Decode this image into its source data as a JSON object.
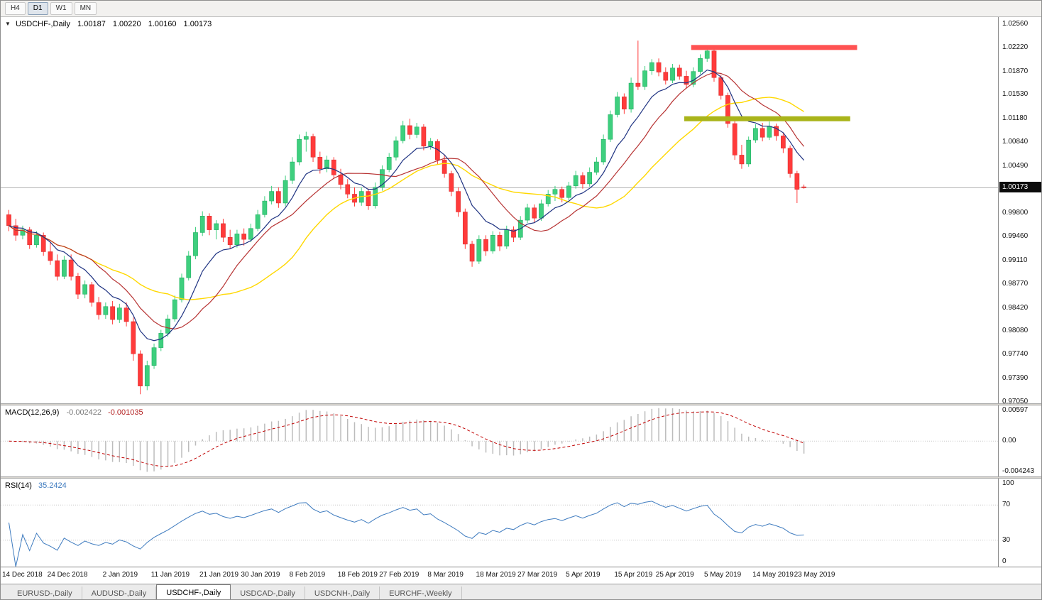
{
  "toolbar": {
    "timeframes": [
      {
        "label": "H4",
        "active": false
      },
      {
        "label": "D1",
        "active": true
      },
      {
        "label": "W1",
        "active": false
      },
      {
        "label": "MN",
        "active": false
      }
    ]
  },
  "chart": {
    "symbol_title": "USDCHF-,Daily",
    "ohlc": {
      "open": "1.00187",
      "high": "1.00220",
      "low": "1.00160",
      "close": "1.00173"
    },
    "price_axis_labels": [
      "1.02560",
      "1.02220",
      "1.01870",
      "1.01530",
      "1.01180",
      "1.00840",
      "1.00490",
      "0.99800",
      "0.99460",
      "0.99110",
      "0.98770",
      "0.98420",
      "0.98080",
      "0.97740",
      "0.97390",
      "0.97050"
    ]
  },
  "macd": {
    "name": "MACD(12,26,9)",
    "main_value": "-0.002422",
    "signal_value": "-0.001035",
    "axis": {
      "top": "0.00597",
      "zero": "0.00",
      "bottom": "-0.004243"
    }
  },
  "rsi": {
    "name": "RSI(14)",
    "value": "35.2424",
    "axis_labels": [
      "100",
      "70",
      "30",
      "0"
    ],
    "levels": [
      70,
      30
    ]
  },
  "date_axis": {
    "labels": [
      {
        "text": "14 Dec 2018",
        "index": 0
      },
      {
        "text": "24 Dec 2018",
        "index": 7
      },
      {
        "text": "2 Jan 2019",
        "index": 15
      },
      {
        "text": "11 Jan 2019",
        "index": 22
      },
      {
        "text": "21 Jan 2019",
        "index": 29
      },
      {
        "text": "30 Jan 2019",
        "index": 35
      },
      {
        "text": "8 Feb 2019",
        "index": 42
      },
      {
        "text": "18 Feb 2019",
        "index": 49
      },
      {
        "text": "27 Feb 2019",
        "index": 55
      },
      {
        "text": "8 Mar 2019",
        "index": 62
      },
      {
        "text": "18 Mar 2019",
        "index": 69
      },
      {
        "text": "27 Mar 2019",
        "index": 75
      },
      {
        "text": "5 Apr 2019",
        "index": 82
      },
      {
        "text": "15 Apr 2019",
        "index": 89
      },
      {
        "text": "25 Apr 2019",
        "index": 95
      },
      {
        "text": "5 May 2019",
        "index": 102
      },
      {
        "text": "14 May 2019",
        "index": 109
      },
      {
        "text": "23 May 2019",
        "index": 115
      }
    ]
  },
  "tabs": [
    {
      "label": "EURUSD-,Daily",
      "active": false
    },
    {
      "label": "AUDUSD-,Daily",
      "active": false
    },
    {
      "label": "USDCHF-,Daily",
      "active": true
    },
    {
      "label": "USDCAD-,Daily",
      "active": false
    },
    {
      "label": "USDCNH-,Daily",
      "active": false
    },
    {
      "label": "EURCHF-,Weekly",
      "active": false
    }
  ],
  "colors": {
    "candle_bull": "#3ecf7e",
    "candle_bull_edge": "#17a85b",
    "candle_bear": "#ff3b3b",
    "candle_bear_edge": "#d42a2a",
    "macd_hist": "#bcbcbc",
    "macd_signal": "#c00000",
    "rsi_line": "#3e7bbf",
    "price_line": "#b0b0b0"
  },
  "chart_data": {
    "type": "candlestick",
    "symbol": "USDCHF",
    "timeframe": "Daily",
    "title": "USDCHF-,Daily 1.00187 1.00220 1.00160 1.00173",
    "price_range": {
      "top": 1.02664,
      "bottom": 0.97028
    },
    "current_price": 1.00173,
    "candles_ohlc": [
      [
        0.9978,
        0.9985,
        0.9954,
        0.9962
      ],
      [
        0.9962,
        0.9972,
        0.994,
        0.9948
      ],
      [
        0.9948,
        0.9962,
        0.9942,
        0.9956
      ],
      [
        0.9956,
        0.996,
        0.9928,
        0.9934
      ],
      [
        0.9934,
        0.9954,
        0.993,
        0.9948
      ],
      [
        0.9948,
        0.9952,
        0.9918,
        0.9924
      ],
      [
        0.9924,
        0.9938,
        0.9905,
        0.9911
      ],
      [
        0.9911,
        0.992,
        0.9882,
        0.9888
      ],
      [
        0.9888,
        0.9918,
        0.9884,
        0.9912
      ],
      [
        0.9912,
        0.992,
        0.9882,
        0.9888
      ],
      [
        0.9888,
        0.9893,
        0.9855,
        0.9862
      ],
      [
        0.9862,
        0.9882,
        0.9856,
        0.9876
      ],
      [
        0.9876,
        0.988,
        0.9844,
        0.985
      ],
      [
        0.985,
        0.9858,
        0.9825,
        0.9832
      ],
      [
        0.9832,
        0.985,
        0.9826,
        0.9844
      ],
      [
        0.9844,
        0.9852,
        0.9818,
        0.9825
      ],
      [
        0.9825,
        0.9848,
        0.982,
        0.9842
      ],
      [
        0.9842,
        0.985,
        0.9815,
        0.9822
      ],
      [
        0.9822,
        0.9828,
        0.9765,
        0.9775
      ],
      [
        0.9775,
        0.978,
        0.9716,
        0.9728
      ],
      [
        0.9728,
        0.9765,
        0.9722,
        0.9758
      ],
      [
        0.9758,
        0.979,
        0.9753,
        0.9784
      ],
      [
        0.9784,
        0.981,
        0.9779,
        0.9805
      ],
      [
        0.9805,
        0.9832,
        0.98,
        0.9826
      ],
      [
        0.9826,
        0.986,
        0.9822,
        0.9854
      ],
      [
        0.9854,
        0.9892,
        0.985,
        0.9886
      ],
      [
        0.9886,
        0.9925,
        0.9882,
        0.9918
      ],
      [
        0.9918,
        0.996,
        0.9913,
        0.9952
      ],
      [
        0.9952,
        0.9983,
        0.9947,
        0.9976
      ],
      [
        0.9976,
        0.998,
        0.9948,
        0.9956
      ],
      [
        0.9956,
        0.997,
        0.9942,
        0.9965
      ],
      [
        0.9965,
        0.9972,
        0.9938,
        0.9945
      ],
      [
        0.9945,
        0.9956,
        0.9928,
        0.9934
      ],
      [
        0.9934,
        0.9956,
        0.993,
        0.995
      ],
      [
        0.995,
        0.9958,
        0.9933,
        0.9942
      ],
      [
        0.9942,
        0.9965,
        0.9938,
        0.9958
      ],
      [
        0.9958,
        0.9985,
        0.9954,
        0.9978
      ],
      [
        0.9978,
        1.0005,
        0.9974,
        0.9998
      ],
      [
        0.9998,
        1.002,
        0.9993,
        1.0012
      ],
      [
        1.0012,
        1.0018,
        0.9988,
        0.9995
      ],
      [
        0.9995,
        1.0035,
        0.999,
        1.0028
      ],
      [
        1.0028,
        1.0062,
        1.0023,
        1.0055
      ],
      [
        1.0055,
        1.0095,
        1.005,
        1.0088
      ],
      [
        1.0088,
        1.0099,
        1.007,
        1.0092
      ],
      [
        1.0092,
        1.0096,
        1.0055,
        1.0062
      ],
      [
        1.0062,
        1.007,
        1.0038,
        1.0045
      ],
      [
        1.0045,
        1.0064,
        1.004,
        1.0058
      ],
      [
        1.0058,
        1.0062,
        1.003,
        1.0036
      ],
      [
        1.0036,
        1.0045,
        1.0015,
        1.0022
      ],
      [
        1.0022,
        1.003,
        1.0002,
        1.0008
      ],
      [
        1.0008,
        1.0018,
        0.999,
        0.9996
      ],
      [
        0.9996,
        1.0018,
        0.9991,
        1.0012
      ],
      [
        1.0012,
        1.0016,
        0.9985,
        0.9991
      ],
      [
        0.9991,
        1.0025,
        0.9987,
        1.0018
      ],
      [
        1.0018,
        1.005,
        1.0013,
        1.0044
      ],
      [
        1.0044,
        1.0068,
        1.004,
        1.0062
      ],
      [
        1.0062,
        1.0092,
        1.0057,
        1.0086
      ],
      [
        1.0086,
        1.0115,
        1.0082,
        1.0108
      ],
      [
        1.0108,
        1.0118,
        1.0088,
        1.0095
      ],
      [
        1.0095,
        1.0112,
        1.009,
        1.0106
      ],
      [
        1.0106,
        1.011,
        1.0072,
        1.0078
      ],
      [
        1.0078,
        1.009,
        1.0073,
        1.0085
      ],
      [
        1.0085,
        1.0088,
        1.0052,
        1.0058
      ],
      [
        1.0058,
        1.0065,
        1.0032,
        1.0038
      ],
      [
        1.0038,
        1.0042,
        1.0005,
        1.0012
      ],
      [
        1.0012,
        1.0018,
        0.9975,
        0.9982
      ],
      [
        0.9982,
        0.9987,
        0.9928,
        0.9935
      ],
      [
        0.9935,
        0.994,
        0.9902,
        0.991
      ],
      [
        0.991,
        0.9948,
        0.9906,
        0.9942
      ],
      [
        0.9942,
        0.9948,
        0.9918,
        0.9925
      ],
      [
        0.9925,
        0.9954,
        0.9921,
        0.9948
      ],
      [
        0.9948,
        0.9953,
        0.9925,
        0.9932
      ],
      [
        0.9932,
        0.9962,
        0.9928,
        0.9956
      ],
      [
        0.9956,
        0.9961,
        0.9938,
        0.9945
      ],
      [
        0.9945,
        0.9976,
        0.9941,
        0.997
      ],
      [
        0.997,
        0.9994,
        0.9966,
        0.9988
      ],
      [
        0.9988,
        0.9993,
        0.9966,
        0.9973
      ],
      [
        0.9973,
        1.0,
        0.9969,
        0.9994
      ],
      [
        0.9994,
        1.0014,
        0.999,
        1.0008
      ],
      [
        1.0008,
        1.002,
        0.9998,
        1.0015
      ],
      [
        1.0015,
        1.0019,
        0.9996,
        1.0003
      ],
      [
        1.0003,
        1.0026,
        0.9999,
        1.002
      ],
      [
        1.002,
        1.0042,
        1.0016,
        1.0035
      ],
      [
        1.0035,
        1.004,
        1.0016,
        1.0023
      ],
      [
        1.0023,
        1.0047,
        1.0019,
        1.004
      ],
      [
        1.004,
        1.0062,
        1.0036,
        1.0055
      ],
      [
        1.0055,
        1.0095,
        1.0051,
        1.0088
      ],
      [
        1.0088,
        1.013,
        1.0084,
        1.0124
      ],
      [
        1.0124,
        1.0157,
        1.012,
        1.015
      ],
      [
        1.015,
        1.0155,
        1.0125,
        1.0132
      ],
      [
        1.0132,
        1.0178,
        1.0127,
        1.017
      ],
      [
        1.017,
        1.0232,
        1.016,
        1.0165
      ],
      [
        1.0165,
        1.0195,
        1.016,
        1.0188
      ],
      [
        1.0188,
        1.0205,
        1.0182,
        1.02
      ],
      [
        1.02,
        1.0206,
        1.018,
        1.0186
      ],
      [
        1.0186,
        1.0193,
        1.0168,
        1.0174
      ],
      [
        1.0174,
        1.0198,
        1.017,
        1.0192
      ],
      [
        1.0192,
        1.0197,
        1.0175,
        1.018
      ],
      [
        1.018,
        1.0188,
        1.0162,
        1.0168
      ],
      [
        1.0168,
        1.0193,
        1.0164,
        1.0187
      ],
      [
        1.0187,
        1.0212,
        1.0183,
        1.0206
      ],
      [
        1.0206,
        1.0223,
        1.0201,
        1.0217
      ],
      [
        1.0217,
        1.022,
        1.0172,
        1.0178
      ],
      [
        1.0178,
        1.0182,
        1.0146,
        1.0152
      ],
      [
        1.0152,
        1.0156,
        1.0105,
        1.0111
      ],
      [
        1.0111,
        1.0116,
        1.0058,
        1.0065
      ],
      [
        1.0065,
        1.008,
        1.0045,
        1.0052
      ],
      [
        1.0052,
        1.0092,
        1.0048,
        1.0087
      ],
      [
        1.0087,
        1.011,
        1.0083,
        1.0104
      ],
      [
        1.0104,
        1.0112,
        1.0085,
        1.0091
      ],
      [
        1.0091,
        1.0114,
        1.0087,
        1.0107
      ],
      [
        1.0107,
        1.0111,
        1.0086,
        1.0093
      ],
      [
        1.0093,
        1.0098,
        1.0068,
        1.0075
      ],
      [
        1.0075,
        1.0079,
        1.0032,
        1.0038
      ],
      [
        1.0038,
        1.0042,
        0.9995,
        1.0015
      ],
      [
        1.00187,
        1.0022,
        1.0016,
        1.00173
      ]
    ],
    "overlays": {
      "resistance_bar": {
        "price": 1.0222,
        "start_index": 99,
        "end_index": 123,
        "color": "#ff5252"
      },
      "support_bar": {
        "price": 1.0118,
        "start_index": 98,
        "end_index": 122,
        "color": "#a9b41a"
      },
      "moving_averages": [
        {
          "type": "ema",
          "period": 8,
          "color": "#1f3382"
        },
        {
          "type": "sma",
          "period": 13,
          "color": "#b73333"
        },
        {
          "type": "sma",
          "period": 24,
          "color": "#ffd800"
        }
      ]
    }
  }
}
